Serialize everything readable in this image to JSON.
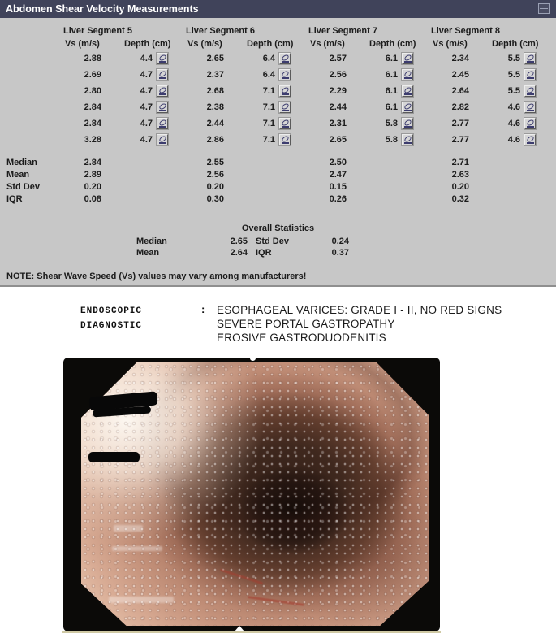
{
  "panel": {
    "title": "Abdomen Shear Velocity Measurements",
    "columns": {
      "vs": "Vs (m/s)",
      "depth": "Depth (cm)"
    },
    "stat_labels": [
      "Median",
      "Mean",
      "Std Dev",
      "IQR"
    ],
    "segments": [
      {
        "name": "Liver Segment 5",
        "rows": [
          {
            "vs": "2.88",
            "depth": "4.4"
          },
          {
            "vs": "2.69",
            "depth": "4.7"
          },
          {
            "vs": "2.80",
            "depth": "4.7"
          },
          {
            "vs": "2.84",
            "depth": "4.7"
          },
          {
            "vs": "2.84",
            "depth": "4.7"
          },
          {
            "vs": "3.28",
            "depth": "4.7"
          }
        ],
        "stats": [
          "2.84",
          "2.89",
          "0.20",
          "0.08"
        ]
      },
      {
        "name": "Liver Segment 6",
        "rows": [
          {
            "vs": "2.65",
            "depth": "6.4"
          },
          {
            "vs": "2.37",
            "depth": "6.4"
          },
          {
            "vs": "2.68",
            "depth": "7.1"
          },
          {
            "vs": "2.38",
            "depth": "7.1"
          },
          {
            "vs": "2.44",
            "depth": "7.1"
          },
          {
            "vs": "2.86",
            "depth": "7.1"
          }
        ],
        "stats": [
          "2.55",
          "2.56",
          "0.20",
          "0.30"
        ]
      },
      {
        "name": "Liver Segment 7",
        "rows": [
          {
            "vs": "2.57",
            "depth": "6.1"
          },
          {
            "vs": "2.56",
            "depth": "6.1"
          },
          {
            "vs": "2.29",
            "depth": "6.1"
          },
          {
            "vs": "2.44",
            "depth": "6.1"
          },
          {
            "vs": "2.31",
            "depth": "5.8"
          },
          {
            "vs": "2.65",
            "depth": "5.8"
          }
        ],
        "stats": [
          "2.50",
          "2.47",
          "0.15",
          "0.26"
        ]
      },
      {
        "name": "Liver Segment 8",
        "rows": [
          {
            "vs": "2.34",
            "depth": "5.5"
          },
          {
            "vs": "2.45",
            "depth": "5.5"
          },
          {
            "vs": "2.64",
            "depth": "5.5"
          },
          {
            "vs": "2.82",
            "depth": "4.6"
          },
          {
            "vs": "2.77",
            "depth": "4.6"
          },
          {
            "vs": "2.77",
            "depth": "4.6"
          }
        ],
        "stats": [
          "2.71",
          "2.63",
          "0.20",
          "0.32"
        ]
      }
    ],
    "overall": {
      "title": "Overall Statistics",
      "rows": [
        {
          "label1": "Median",
          "value1": "2.65",
          "label2": "Std Dev",
          "value2": "0.24"
        },
        {
          "label1": "Mean",
          "value1": "2.64",
          "label2": "IQR",
          "value2": "0.37"
        }
      ]
    },
    "note": "NOTE: Shear Wave Speed (Vs) values may vary among manufacturers!"
  },
  "report": {
    "label_line1": "ENDOSCOPIC",
    "label_line2": "DIAGNOSTIC",
    "separator": ":",
    "findings": [
      "ESOPHAGEAL VARICES: GRADE I - II, NO RED SIGNS",
      "SEVERE PORTAL GASTROPATHY",
      "EROSIVE GASTRODUODENITIS"
    ]
  },
  "icons": {
    "titlebar_button": "collapse-window-icon",
    "measurement_button": "measurement-report-icon"
  },
  "colors": {
    "titlebar_bg": "#40435a",
    "titlebar_text": "#ffffff",
    "panel_bg": "#c7c7c7",
    "table_text": "#1c1c1c",
    "icon_glyph": "#3c3c6e",
    "photo_frame": "#0b0a08",
    "mucosa_pink": "#c98f7a",
    "lumen_dark": "#241510"
  }
}
